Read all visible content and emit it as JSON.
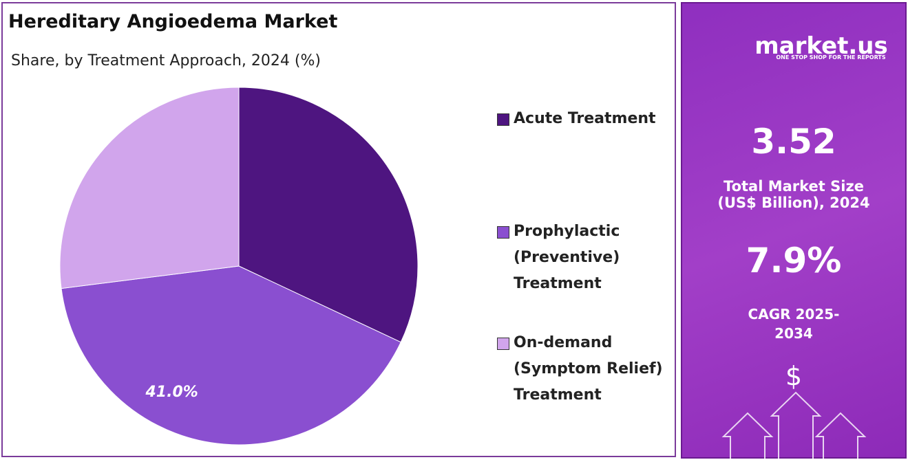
{
  "chart_data": {
    "type": "pie",
    "title": "Hereditary Angioedema Market",
    "subtitle": "Share, by Treatment Approach, 2024 (%)",
    "categories": [
      "Acute Treatment",
      "Prophylactic (Preventive) Treatment",
      "On-demand (Symptom Relief) Treatment"
    ],
    "values": [
      32,
      41,
      27
    ],
    "value_labels": [
      null,
      "41.0%",
      null
    ],
    "colors": [
      "#4e1580",
      "#8a4fd0",
      "#d1a5ec"
    ],
    "legend": "right"
  },
  "sidebar": {
    "logo": "market.us",
    "tagline": "ONE STOP SHOP FOR THE REPORTS",
    "market_size": "3.52",
    "market_size_label": "Total Market Size (US$ Billion), 2024",
    "cagr": "7.9%",
    "cagr_label": "CAGR 2025-2034",
    "icon": "$"
  }
}
